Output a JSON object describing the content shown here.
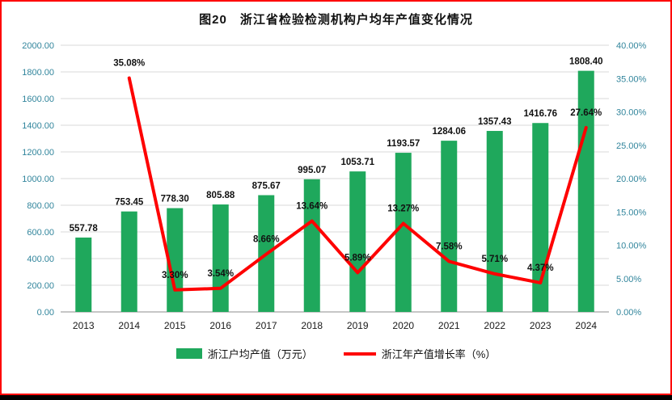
{
  "chart_data": {
    "type": "bar",
    "combo": true,
    "title": "图20　浙江省检验检测机构户均年产值变化情况",
    "categories": [
      "2013",
      "2014",
      "2015",
      "2016",
      "2017",
      "2018",
      "2019",
      "2020",
      "2021",
      "2022",
      "2023",
      "2024"
    ],
    "series": [
      {
        "name": "浙江户均产值（万元）",
        "type": "bar",
        "color": "#1fa85c",
        "values": [
          557.78,
          753.45,
          778.3,
          805.88,
          875.67,
          995.07,
          1053.71,
          1193.57,
          1284.06,
          1357.43,
          1416.76,
          1808.4
        ],
        "labels": [
          "557.78",
          "753.45",
          "778.30",
          "805.88",
          "875.67",
          "995.07",
          "1053.71",
          "1193.57",
          "1284.06",
          "1357.43",
          "1416.76",
          "1808.40"
        ]
      },
      {
        "name": "浙江年产值增长率（%）",
        "type": "line",
        "color": "#fe0000",
        "values": [
          null,
          35.08,
          3.3,
          3.54,
          8.66,
          13.64,
          5.89,
          13.27,
          7.58,
          5.71,
          4.37,
          27.64
        ],
        "labels": [
          "",
          "35.08%",
          "3.30%",
          "3.54%",
          "8.66%",
          "13.64%",
          "5.89%",
          "13.27%",
          "7.58%",
          "5.71%",
          "4.37%",
          "27.64%"
        ]
      }
    ],
    "left_axis": {
      "min": 0,
      "max": 2000,
      "step": 200,
      "ticks": [
        "0.00",
        "200.00",
        "400.00",
        "600.00",
        "800.00",
        "1000.00",
        "1200.00",
        "1400.00",
        "1600.00",
        "1800.00",
        "2000.00"
      ]
    },
    "right_axis": {
      "min": 0,
      "max": 40,
      "step": 5,
      "ticks": [
        "0.00%",
        "5.00%",
        "10.00%",
        "15.00%",
        "20.00%",
        "25.00%",
        "30.00%",
        "35.00%",
        "40.00%"
      ]
    },
    "legend": [
      "浙江户均产值（万元）",
      "浙江年产值增长率（%）"
    ],
    "grid": "horizontal",
    "legend_position": "bottom",
    "frame_border_color": "#fe0000"
  }
}
